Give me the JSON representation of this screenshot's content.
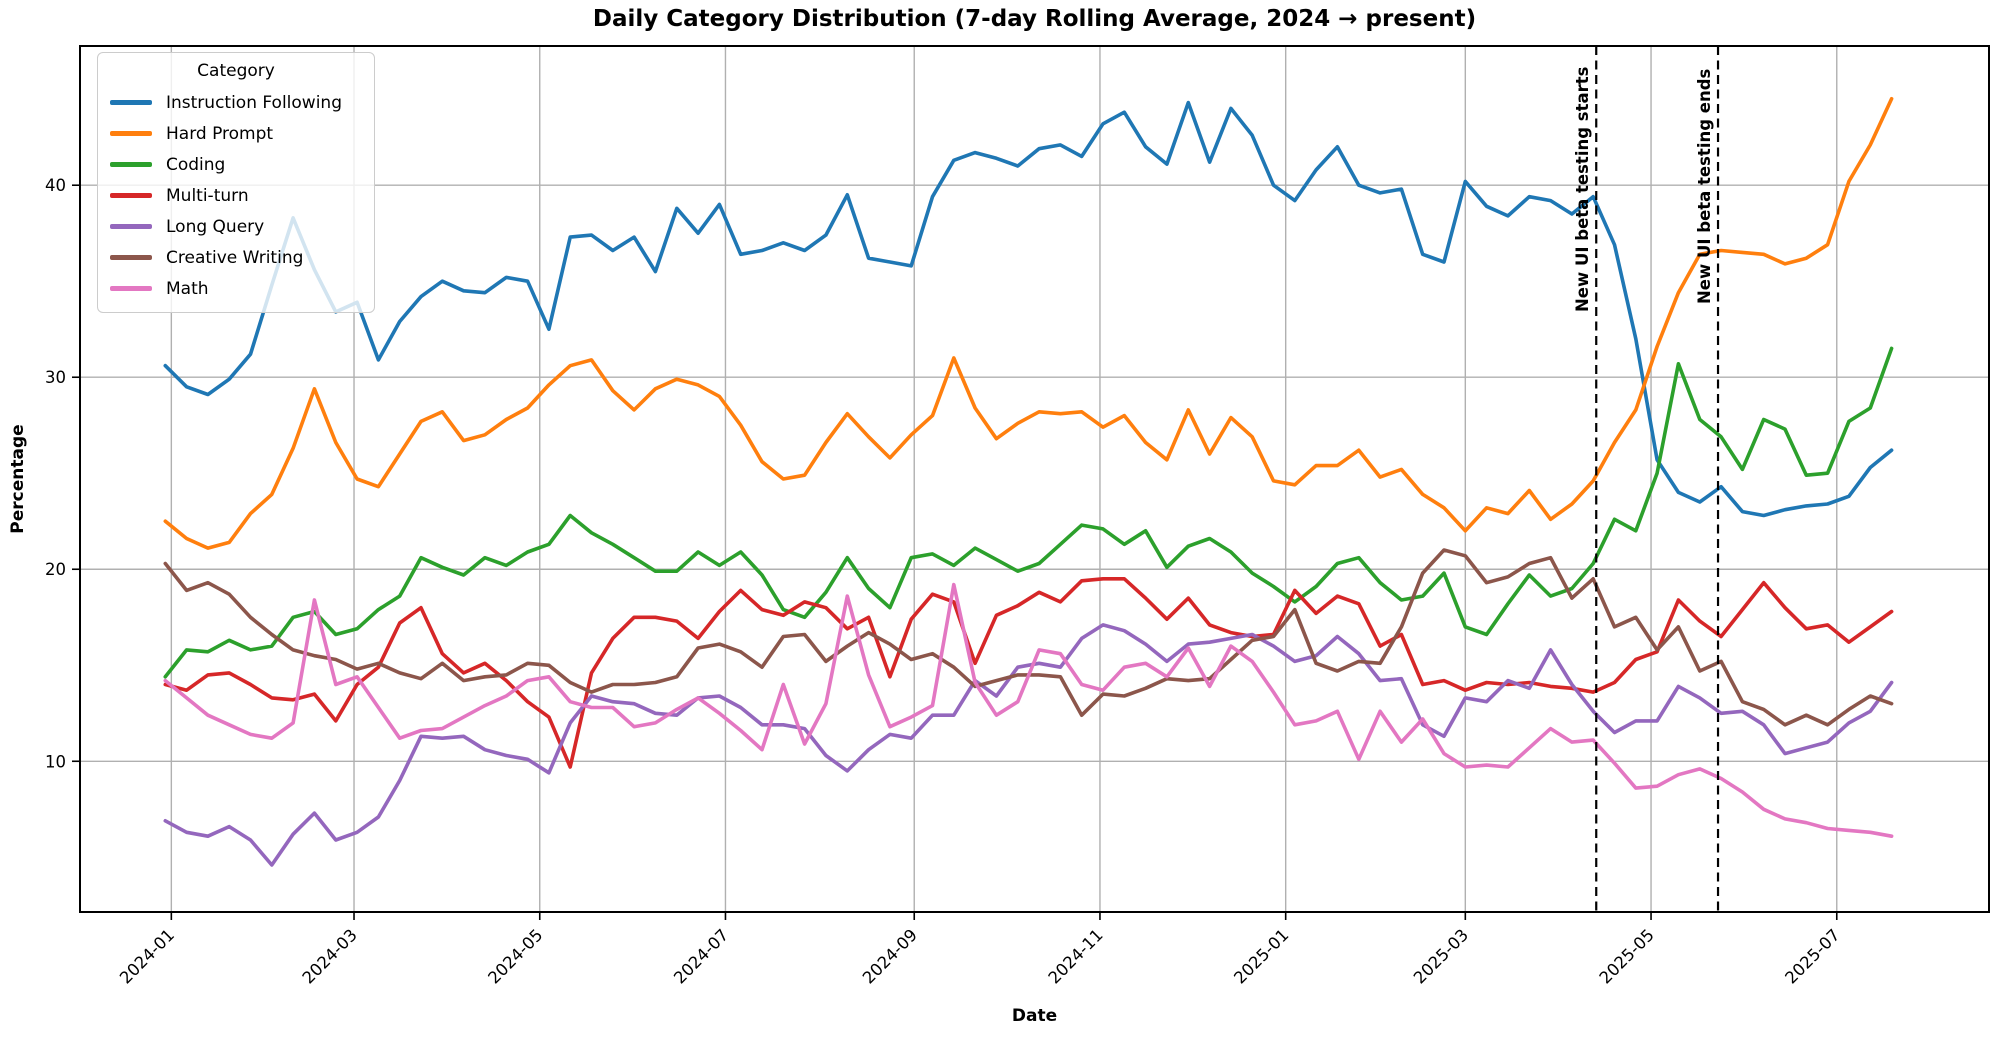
{
  "figure": {
    "title": "Daily Category Distribution (7-day Rolling Average, 2024 → present)",
    "xlabel": "Date",
    "ylabel": "Percentage"
  },
  "chart_data": {
    "type": "line",
    "title": "Daily Category Distribution (7-day Rolling Average, 2024 → present)",
    "xlabel": "Date",
    "ylabel": "Percentage",
    "grid": true,
    "legend": {
      "title": "Category",
      "position": "upper-left"
    },
    "x_start_date": "2023-12-30",
    "x_step_days": 7,
    "xlim_days": [
      -28,
      599
    ],
    "ylim": [
      2.15,
      47.25
    ],
    "y_ticks": [
      {
        "label": "10",
        "value": 10
      },
      {
        "label": "20",
        "value": 20
      },
      {
        "label": "30",
        "value": 30
      },
      {
        "label": "40",
        "value": 40
      }
    ],
    "x_ticks": [
      {
        "label": "2024-01",
        "day": 2
      },
      {
        "label": "2024-03",
        "day": 62
      },
      {
        "label": "2024-05",
        "day": 123
      },
      {
        "label": "2024-07",
        "day": 184
      },
      {
        "label": "2024-09",
        "day": 246
      },
      {
        "label": "2024-11",
        "day": 307
      },
      {
        "label": "2025-01",
        "day": 368
      },
      {
        "label": "2025-03",
        "day": 427
      },
      {
        "label": "2025-05",
        "day": 488
      },
      {
        "label": "2025-07",
        "day": 549
      }
    ],
    "annotations": [
      {
        "label": "New UI beta testing starts",
        "day": 470,
        "text_bottom_y": 312
      },
      {
        "label": "New UI beta testing ends",
        "day": 510,
        "text_bottom_y": 304
      }
    ],
    "series": [
      {
        "name": "Instruction Following",
        "color": "#1f77b4",
        "values": [
          30.6,
          29.5,
          29.1,
          29.9,
          31.2,
          34.8,
          38.3,
          35.6,
          33.4,
          33.9,
          30.9,
          32.9,
          34.2,
          35.0,
          34.5,
          34.4,
          35.2,
          35.0,
          32.5,
          37.3,
          37.4,
          36.6,
          37.3,
          35.5,
          38.8,
          37.5,
          39.0,
          36.4,
          36.6,
          37.0,
          36.6,
          37.4,
          39.5,
          36.2,
          36.0,
          35.8,
          39.4,
          41.3,
          41.7,
          41.4,
          41.0,
          41.9,
          42.1,
          41.5,
          43.2,
          43.8,
          42.0,
          41.1,
          44.3,
          41.2,
          44.0,
          42.6,
          40.0,
          39.2,
          40.8,
          42.0,
          40.0,
          39.6,
          39.8,
          36.4,
          36.0,
          40.2,
          38.9,
          38.4,
          39.4,
          39.2,
          38.5,
          39.4,
          36.9,
          32.0,
          25.7,
          24.0,
          23.5,
          24.3,
          23.0,
          22.8,
          23.1,
          23.3,
          23.4,
          23.8,
          25.3,
          26.2
        ]
      },
      {
        "name": "Hard Prompt",
        "color": "#ff7f0e",
        "values": [
          22.5,
          21.6,
          21.1,
          21.4,
          22.9,
          23.9,
          26.3,
          29.4,
          26.6,
          24.7,
          24.3,
          26.0,
          27.7,
          28.2,
          26.7,
          27.0,
          27.8,
          28.4,
          29.6,
          30.6,
          30.9,
          29.3,
          28.3,
          29.4,
          29.9,
          29.6,
          29.0,
          27.5,
          25.6,
          24.7,
          24.9,
          26.6,
          28.1,
          26.9,
          25.8,
          27.0,
          28.0,
          31.0,
          28.4,
          26.8,
          27.6,
          28.2,
          28.1,
          28.2,
          27.4,
          28.0,
          26.6,
          25.7,
          28.3,
          26.0,
          27.9,
          26.9,
          24.6,
          24.4,
          25.4,
          25.4,
          26.2,
          24.8,
          25.2,
          23.9,
          23.2,
          22.0,
          23.2,
          22.9,
          24.1,
          22.6,
          23.4,
          24.6,
          26.6,
          28.3,
          31.6,
          34.4,
          36.4,
          36.6,
          36.5,
          36.4,
          35.9,
          36.2,
          36.9,
          40.2,
          42.1,
          44.5
        ]
      },
      {
        "name": "Coding",
        "color": "#2ca02c",
        "values": [
          14.4,
          15.8,
          15.7,
          16.3,
          15.8,
          16.0,
          17.5,
          17.8,
          16.6,
          16.9,
          17.9,
          18.6,
          20.6,
          20.1,
          19.7,
          20.6,
          20.2,
          20.9,
          21.3,
          22.8,
          21.9,
          21.3,
          20.6,
          19.9,
          19.9,
          20.9,
          20.2,
          20.9,
          19.7,
          17.9,
          17.5,
          18.8,
          20.6,
          19.0,
          18.0,
          20.6,
          20.8,
          20.2,
          21.1,
          20.5,
          19.9,
          20.3,
          21.3,
          22.3,
          22.1,
          21.3,
          22.0,
          20.1,
          21.2,
          21.6,
          20.9,
          19.8,
          19.1,
          18.3,
          19.1,
          20.3,
          20.6,
          19.3,
          18.4,
          18.6,
          19.8,
          17.0,
          16.6,
          18.2,
          19.7,
          18.6,
          19.0,
          20.3,
          22.6,
          22.0,
          25.0,
          30.7,
          27.8,
          26.9,
          25.2,
          27.8,
          27.3,
          24.9,
          25.0,
          27.7,
          28.4,
          31.5
        ]
      },
      {
        "name": "Multi-turn",
        "color": "#d62728",
        "values": [
          14.0,
          13.7,
          14.5,
          14.6,
          14.0,
          13.3,
          13.2,
          13.5,
          12.1,
          14.0,
          14.9,
          17.2,
          18.0,
          15.6,
          14.6,
          15.1,
          14.2,
          13.1,
          12.3,
          9.7,
          14.6,
          16.4,
          17.5,
          17.5,
          17.3,
          16.4,
          17.8,
          18.9,
          17.9,
          17.6,
          18.3,
          18.0,
          16.9,
          17.5,
          14.4,
          17.4,
          18.7,
          18.3,
          15.1,
          17.6,
          18.1,
          18.8,
          18.3,
          19.4,
          19.5,
          19.5,
          18.5,
          17.4,
          18.5,
          17.1,
          16.7,
          16.5,
          16.6,
          18.9,
          17.7,
          18.6,
          18.2,
          16.0,
          16.6,
          14.0,
          14.2,
          13.7,
          14.1,
          14.0,
          14.1,
          13.9,
          13.8,
          13.6,
          14.1,
          15.3,
          15.7,
          18.4,
          17.3,
          16.5,
          17.9,
          19.3,
          18.0,
          16.9,
          17.1,
          16.2,
          17.0,
          17.8
        ]
      },
      {
        "name": "Long Query",
        "color": "#9467bd",
        "values": [
          6.9,
          6.3,
          6.1,
          6.6,
          5.9,
          4.6,
          6.2,
          7.3,
          5.9,
          6.3,
          7.1,
          9.0,
          11.3,
          11.2,
          11.3,
          10.6,
          10.3,
          10.1,
          9.4,
          12.0,
          13.4,
          13.1,
          13.0,
          12.5,
          12.4,
          13.3,
          13.4,
          12.8,
          11.9,
          11.9,
          11.7,
          10.3,
          9.5,
          10.6,
          11.4,
          11.2,
          12.4,
          12.4,
          14.2,
          13.4,
          14.9,
          15.1,
          14.9,
          16.4,
          17.1,
          16.8,
          16.1,
          15.2,
          16.1,
          16.2,
          16.4,
          16.6,
          16.0,
          15.2,
          15.5,
          16.5,
          15.6,
          14.2,
          14.3,
          11.9,
          11.3,
          13.3,
          13.1,
          14.2,
          13.8,
          15.8,
          14.0,
          12.6,
          11.5,
          12.1,
          12.1,
          13.9,
          13.3,
          12.5,
          12.6,
          11.9,
          10.4,
          10.7,
          11.0,
          12.0,
          12.6,
          14.1
        ]
      },
      {
        "name": "Creative Writing",
        "color": "#8c564b",
        "values": [
          20.3,
          18.9,
          19.3,
          18.7,
          17.5,
          16.6,
          15.8,
          15.5,
          15.3,
          14.8,
          15.1,
          14.6,
          14.3,
          15.1,
          14.2,
          14.4,
          14.5,
          15.1,
          15.0,
          14.1,
          13.6,
          14.0,
          14.0,
          14.1,
          14.4,
          15.9,
          16.1,
          15.7,
          14.9,
          16.5,
          16.6,
          15.2,
          16.0,
          16.7,
          16.1,
          15.3,
          15.6,
          14.9,
          13.9,
          14.2,
          14.5,
          14.5,
          14.4,
          12.4,
          13.5,
          13.4,
          13.8,
          14.3,
          14.2,
          14.3,
          15.3,
          16.3,
          16.5,
          17.9,
          15.1,
          14.7,
          15.2,
          15.1,
          17.0,
          19.8,
          21.0,
          20.7,
          19.3,
          19.6,
          20.3,
          20.6,
          18.5,
          19.5,
          17.0,
          17.5,
          15.8,
          17.0,
          14.7,
          15.2,
          13.1,
          12.7,
          11.9,
          12.4,
          11.9,
          12.7,
          13.4,
          13.0
        ]
      },
      {
        "name": "Math",
        "color": "#e377c2",
        "values": [
          14.2,
          13.3,
          12.4,
          11.9,
          11.4,
          11.2,
          12.0,
          18.4,
          14.0,
          14.4,
          12.8,
          11.2,
          11.6,
          11.7,
          12.3,
          12.9,
          13.4,
          14.2,
          14.4,
          13.1,
          12.8,
          12.8,
          11.8,
          12.0,
          12.7,
          13.3,
          12.5,
          11.6,
          10.6,
          14.0,
          10.9,
          13.0,
          18.6,
          14.5,
          11.8,
          12.3,
          12.9,
          19.2,
          14.1,
          12.4,
          13.1,
          15.8,
          15.6,
          14.0,
          13.7,
          14.9,
          15.1,
          14.4,
          15.9,
          13.9,
          16.0,
          15.2,
          13.6,
          11.9,
          12.1,
          12.6,
          10.1,
          12.6,
          11.0,
          12.2,
          10.4,
          9.7,
          9.8,
          9.7,
          10.7,
          11.7,
          11.0,
          11.1,
          9.9,
          8.6,
          8.7,
          9.3,
          9.6,
          9.1,
          8.4,
          7.5,
          7.0,
          6.8,
          6.5,
          6.4,
          6.3,
          6.1
        ]
      }
    ]
  }
}
